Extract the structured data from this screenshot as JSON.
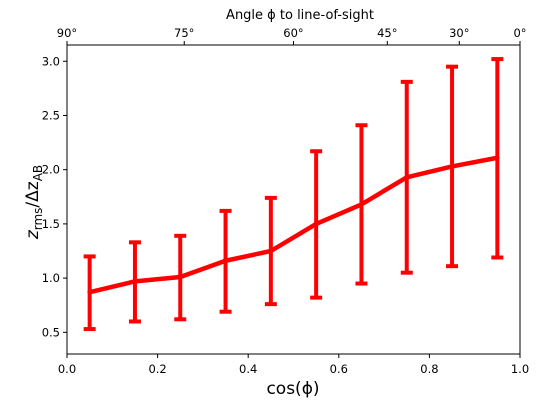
{
  "chart_data": {
    "type": "line",
    "title": "",
    "top_axis_label": "Angle ϕ to line-of-sight",
    "xlabel": "cos(ϕ)",
    "ylabel_main": "z",
    "ylabel_main_sub": "rms",
    "ylabel_sep": "/Δz",
    "ylabel_sep_sub": "AB",
    "xlim": [
      0.0,
      1.0
    ],
    "ylim": [
      0.3,
      3.15
    ],
    "xticks": [
      {
        "value": 0.0,
        "label": "0.0"
      },
      {
        "value": 0.2,
        "label": "0.2"
      },
      {
        "value": 0.4,
        "label": "0.4"
      },
      {
        "value": 0.6,
        "label": "0.6"
      },
      {
        "value": 0.8,
        "label": "0.8"
      },
      {
        "value": 1.0,
        "label": "1.0"
      }
    ],
    "yticks": [
      {
        "value": 0.5,
        "label": "0.5"
      },
      {
        "value": 1.0,
        "label": "1.0"
      },
      {
        "value": 1.5,
        "label": "1.5"
      },
      {
        "value": 2.0,
        "label": "2.0"
      },
      {
        "value": 2.5,
        "label": "2.5"
      },
      {
        "value": 3.0,
        "label": "3.0"
      }
    ],
    "top_ticks": [
      {
        "angle": 90,
        "label": "90°"
      },
      {
        "angle": 75,
        "label": "75°"
      },
      {
        "angle": 60,
        "label": "60°"
      },
      {
        "angle": 45,
        "label": "45°"
      },
      {
        "angle": 30,
        "label": "30°"
      },
      {
        "angle": 0,
        "label": "0°"
      }
    ],
    "series": [
      {
        "color": "#ff0000",
        "x": [
          0.05,
          0.15,
          0.25,
          0.35,
          0.45,
          0.55,
          0.65,
          0.75,
          0.85,
          0.95
        ],
        "y": [
          0.87,
          0.97,
          1.01,
          1.16,
          1.25,
          1.5,
          1.68,
          1.93,
          2.03,
          2.11
        ],
        "y_low": [
          0.53,
          0.6,
          0.62,
          0.69,
          0.76,
          0.82,
          0.95,
          1.05,
          1.11,
          1.19
        ],
        "y_high": [
          1.2,
          1.33,
          1.39,
          1.62,
          1.74,
          2.17,
          2.41,
          2.81,
          2.95,
          3.02
        ]
      }
    ]
  }
}
